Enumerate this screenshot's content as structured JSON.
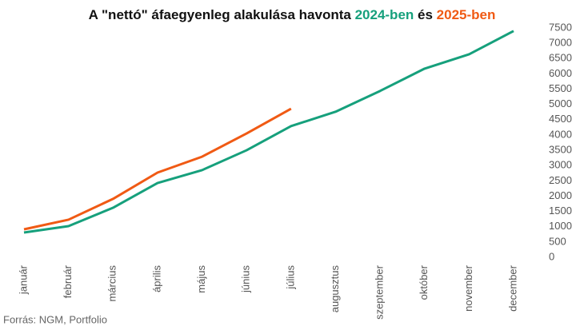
{
  "chart_data": {
    "type": "line",
    "title": "A \"nettó\" áfaegyenleg alakulása havonta",
    "legend_joiner": "és",
    "source": "Forrás: NGM, Portfolio",
    "categories": [
      "január",
      "február",
      "március",
      "április",
      "május",
      "június",
      "július",
      "augusztus",
      "szeptember",
      "október",
      "november",
      "december"
    ],
    "series": [
      {
        "name": "2024-ben",
        "color": "#16a07c",
        "values": [
          810,
          1020,
          1620,
          2430,
          2850,
          3500,
          4290,
          4760,
          5440,
          6170,
          6640,
          7400
        ]
      },
      {
        "name": "2025-ben",
        "color": "#f05a14",
        "values": [
          915,
          1230,
          1910,
          2770,
          3290,
          4050,
          4860,
          null,
          null,
          null,
          null,
          null
        ]
      }
    ],
    "ylim": [
      0,
      7500
    ],
    "yticks": [
      0,
      500,
      1000,
      1500,
      2000,
      2500,
      3000,
      3500,
      4000,
      4500,
      5000,
      5500,
      6000,
      6500,
      7000,
      7500
    ],
    "y_axis_side": "right",
    "grid": false
  }
}
